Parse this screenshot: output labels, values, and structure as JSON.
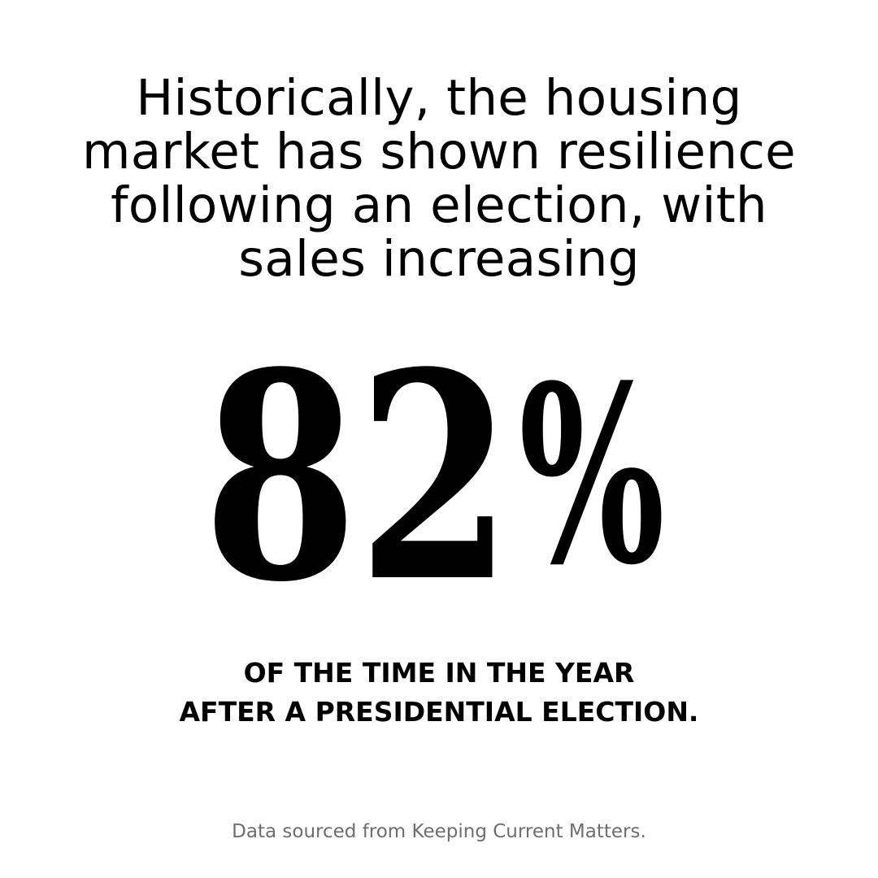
{
  "headline": {
    "lines": [
      "Historically, the housing",
      "market has shown resilience",
      "following an election, with",
      "sales increasing"
    ]
  },
  "stat": {
    "number": "82",
    "symbol": "%"
  },
  "subline": {
    "lines": [
      "OF THE TIME IN THE YEAR",
      "AFTER A PRESIDENTIAL ELECTION."
    ]
  },
  "source": "Data sourced from Keeping Current Matters."
}
